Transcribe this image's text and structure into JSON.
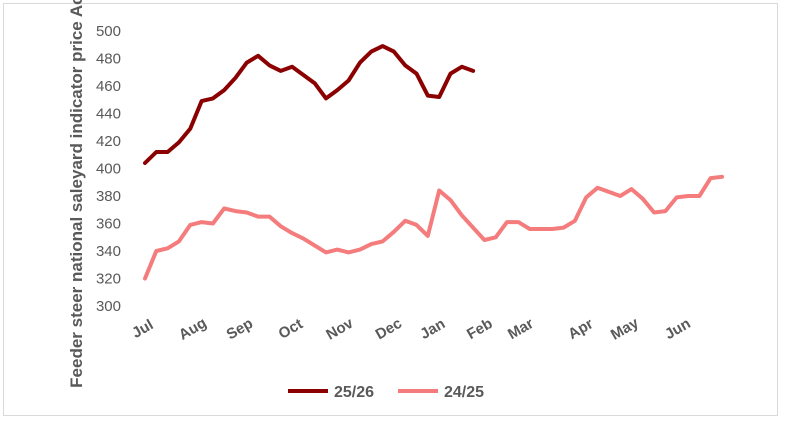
{
  "chart_data": {
    "type": "line",
    "title": "",
    "xlabel": "",
    "ylabel": "Feeder steer national saleyard indicator price Ac/kg lw",
    "ylim": [
      300,
      500
    ],
    "yticks": [
      300,
      320,
      340,
      360,
      380,
      400,
      420,
      440,
      460,
      480,
      500
    ],
    "months": [
      "Jul",
      "Aug",
      "Sep",
      "Oct",
      "Nov",
      "Dec",
      "Jan",
      "Feb",
      "Mar",
      "Apr",
      "May",
      "Jun"
    ],
    "grid": false,
    "legend_position": "bottom",
    "series": [
      {
        "name": "25/26",
        "color": "#8b0000",
        "values": [
          404,
          412,
          412,
          419,
          429,
          449,
          451,
          457,
          466,
          477,
          482,
          475,
          471,
          474,
          468,
          462,
          451,
          457,
          464,
          477,
          485,
          489,
          485,
          475,
          469,
          453,
          452,
          469,
          474,
          471
        ]
      },
      {
        "name": "24/25",
        "color": "#f47c7c",
        "values": [
          320,
          340,
          342,
          347,
          359,
          361,
          360,
          371,
          369,
          368,
          365,
          365,
          358,
          353,
          349,
          344,
          339,
          341,
          339,
          341,
          345,
          347,
          354,
          362,
          359,
          351,
          384,
          377,
          366,
          357,
          348,
          350,
          361,
          361,
          356,
          356,
          356,
          357,
          362,
          379,
          386,
          383,
          380,
          385,
          378,
          368,
          369,
          379,
          380,
          380,
          393,
          394
        ]
      }
    ]
  }
}
